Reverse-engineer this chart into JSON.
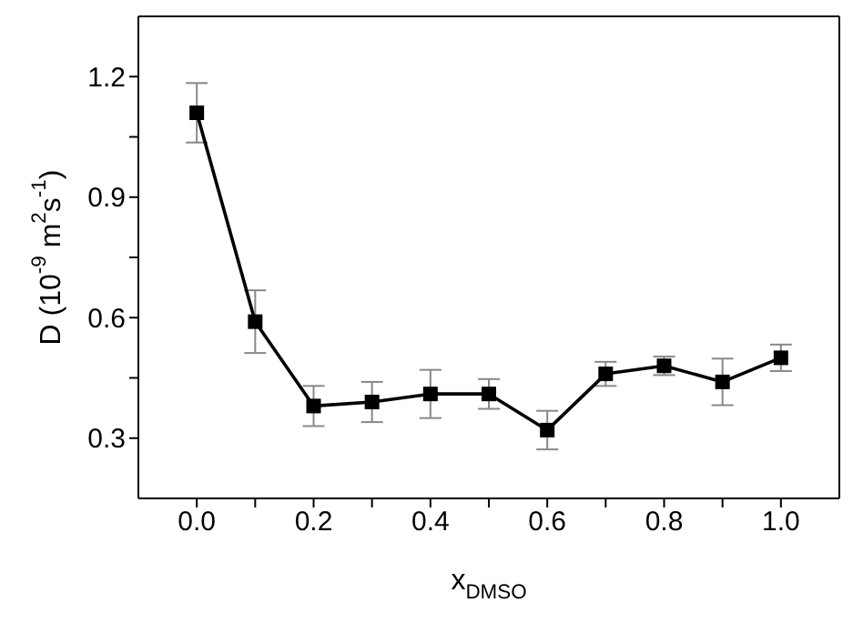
{
  "chart_data": {
    "type": "line",
    "xlabel": "x$_{DMSO}$",
    "ylabel": "D (10$^{-9}$ m$^{2}$s$^{-1}$)",
    "x": [
      0.0,
      0.1,
      0.2,
      0.3,
      0.4,
      0.5,
      0.6,
      0.7,
      0.8,
      0.9,
      1.0
    ],
    "series": [
      {
        "color": "#000000",
        "values": [
          1.11,
          0.59,
          0.38,
          0.39,
          0.41,
          0.41,
          0.32,
          0.46,
          0.48,
          0.44,
          0.5
        ],
        "errors": [
          0.074,
          0.078,
          0.05,
          0.05,
          0.06,
          0.037,
          0.048,
          0.03,
          0.023,
          0.058,
          0.033
        ]
      }
    ],
    "xlim": [
      -0.1,
      1.1
    ],
    "xticks": [
      {
        "value": 0.0,
        "label": "0.0"
      },
      {
        "value": 0.1,
        "label": null
      },
      {
        "value": 0.2,
        "label": "0.2"
      },
      {
        "value": 0.3,
        "label": null
      },
      {
        "value": 0.4,
        "label": "0.4"
      },
      {
        "value": 0.5,
        "label": null
      },
      {
        "value": 0.6,
        "label": "0.6"
      },
      {
        "value": 0.7,
        "label": null
      },
      {
        "value": 0.8,
        "label": "0.8"
      },
      {
        "value": 0.9,
        "label": null
      },
      {
        "value": 1.0,
        "label": "1.0"
      }
    ],
    "ylim": [
      0.15,
      1.35
    ],
    "yticks": [
      {
        "value": 0.3,
        "label": "0.3"
      },
      {
        "value": 0.45,
        "label": null
      },
      {
        "value": 0.6,
        "label": "0.6"
      },
      {
        "value": 0.75,
        "label": null
      },
      {
        "value": 0.9,
        "label": "0.9"
      },
      {
        "value": 1.05,
        "label": null
      },
      {
        "value": 1.2,
        "label": "1.2"
      }
    ],
    "marker": "square",
    "grid": false
  }
}
